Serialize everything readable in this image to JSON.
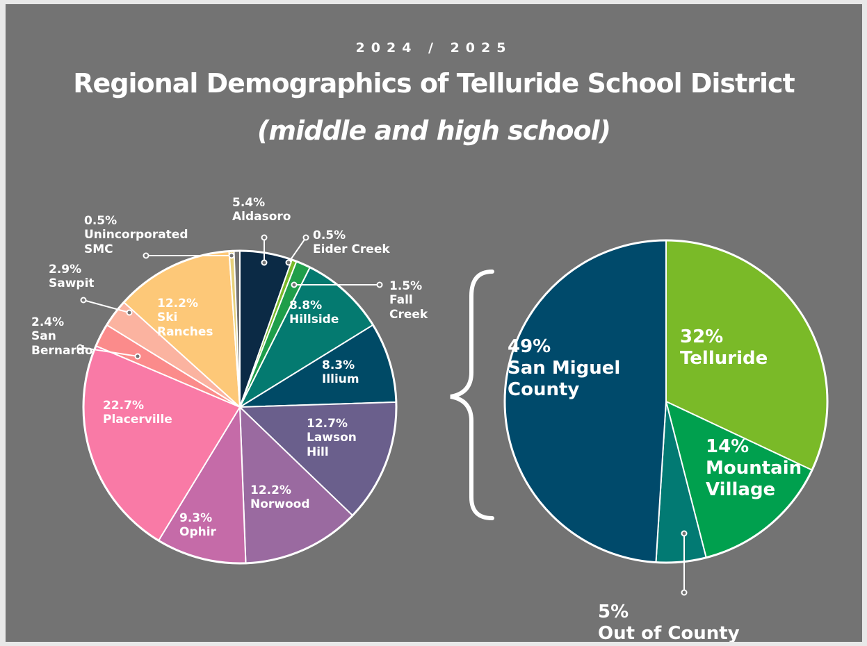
{
  "header": {
    "year": "2024 / 2025",
    "title": "Regional Demographics of Telluride School District",
    "subtitle": "(middle and high school)"
  },
  "chart_data": [
    {
      "type": "pie",
      "categories": [
        "Aldasoro",
        "Eider Creek",
        "Fall Creek",
        "Hillside",
        "Illium",
        "Lawson Hill",
        "Norwood",
        "Ophir",
        "Placerville",
        "San Bernardo",
        "Sawpit",
        "Ski Ranches",
        "Unincorporated SMC"
      ],
      "values": [
        5.4,
        0.5,
        1.5,
        8.8,
        8.3,
        12.7,
        12.2,
        9.3,
        22.7,
        2.4,
        2.9,
        12.2,
        0.5
      ],
      "value_labels": [
        "5.4%",
        "0.5%",
        "1.5%",
        "8.8%",
        "8.3%",
        "12.7%",
        "12.2%",
        "9.3%",
        "22.7%",
        "2.4%",
        "2.9%",
        "12.2%",
        "0.5%"
      ],
      "colors": [
        "#0b2a45",
        "#7ab929",
        "#1f9e4a",
        "#047a70",
        "#004a66",
        "#6a5f8c",
        "#9a6aa0",
        "#c56ba8",
        "#f97aa6",
        "#fb8b8b",
        "#fbb3a0",
        "#fdc878",
        "#e6d07a"
      ]
    },
    {
      "type": "pie",
      "categories": [
        "Telluride",
        "Mountain Village",
        "Out of County",
        "San Miguel County"
      ],
      "values": [
        32,
        14,
        5,
        49
      ],
      "value_labels": [
        "32%",
        "14%",
        "5%",
        "49%"
      ],
      "colors": [
        "#7aba28",
        "#00a04e",
        "#027a73",
        "#004a6b"
      ]
    }
  ]
}
